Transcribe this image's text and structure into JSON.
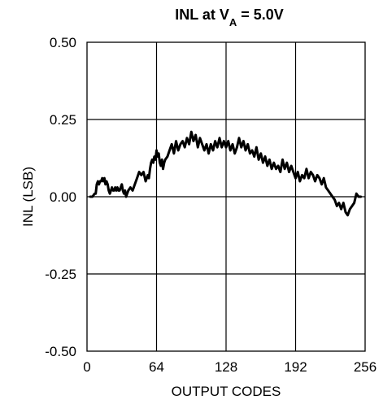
{
  "chart_data": {
    "type": "line",
    "title_main": "INL at V",
    "title_sub": "A",
    "title_rest": " = 5.0V",
    "xlabel": "OUTPUT CODES",
    "ylabel": "INL (LSB)",
    "xlim": [
      0,
      256
    ],
    "ylim": [
      -0.5,
      0.5
    ],
    "xticks": [
      0,
      64,
      128,
      192,
      256
    ],
    "xtick_labels": [
      "0",
      "64",
      "128",
      "192",
      "256"
    ],
    "yticks": [
      0.5,
      0.25,
      0.0,
      -0.25,
      -0.5
    ],
    "ytick_labels": [
      "0.50",
      "0.25",
      "0.00",
      "-0.25",
      "-0.50"
    ],
    "grid": true,
    "line_color": "#000000",
    "series": [
      {
        "x": [
          3,
          5,
          7,
          8,
          9,
          10,
          11,
          12,
          13,
          14,
          15,
          16,
          17,
          18,
          19,
          20,
          21,
          22,
          23,
          24,
          25,
          26,
          27,
          28,
          29,
          30,
          31,
          32,
          33,
          34,
          35,
          36,
          37,
          38,
          40,
          42,
          44,
          46,
          48,
          50,
          52,
          54,
          56,
          57,
          58,
          59,
          60,
          61,
          62,
          63,
          64,
          65,
          66,
          67,
          68,
          69,
          70,
          71,
          72,
          74,
          76,
          78,
          80,
          82,
          84,
          86,
          88,
          90,
          92,
          94,
          96,
          98,
          100,
          102,
          104,
          106,
          108,
          110,
          112,
          114,
          116,
          118,
          120,
          122,
          124,
          126,
          128,
          130,
          132,
          134,
          136,
          138,
          140,
          142,
          144,
          146,
          148,
          150,
          152,
          154,
          156,
          158,
          160,
          162,
          164,
          166,
          168,
          170,
          172,
          174,
          176,
          178,
          180,
          182,
          184,
          186,
          188,
          190,
          192,
          194,
          196,
          198,
          200,
          202,
          204,
          206,
          208,
          210,
          212,
          214,
          216,
          218,
          220,
          222,
          224,
          226,
          228,
          230,
          232,
          234,
          236,
          238,
          240,
          242,
          244,
          246,
          248,
          250,
          252
        ],
        "y": [
          0.0,
          0.0,
          0.01,
          0.01,
          0.04,
          0.05,
          0.04,
          0.05,
          0.05,
          0.06,
          0.05,
          0.06,
          0.04,
          0.05,
          0.04,
          0.02,
          0.01,
          0.02,
          0.03,
          0.02,
          0.02,
          0.03,
          0.02,
          0.03,
          0.02,
          0.02,
          0.03,
          0.04,
          0.02,
          0.01,
          0.02,
          0.0,
          0.01,
          0.02,
          0.03,
          0.02,
          0.04,
          0.06,
          0.08,
          0.07,
          0.08,
          0.05,
          0.07,
          0.06,
          0.09,
          0.11,
          0.12,
          0.11,
          0.13,
          0.12,
          0.15,
          0.13,
          0.14,
          0.11,
          0.1,
          0.12,
          0.09,
          0.11,
          0.12,
          0.13,
          0.15,
          0.17,
          0.14,
          0.18,
          0.15,
          0.17,
          0.18,
          0.16,
          0.19,
          0.17,
          0.21,
          0.18,
          0.2,
          0.16,
          0.19,
          0.17,
          0.15,
          0.17,
          0.14,
          0.17,
          0.15,
          0.18,
          0.16,
          0.19,
          0.16,
          0.18,
          0.16,
          0.18,
          0.15,
          0.17,
          0.14,
          0.16,
          0.19,
          0.16,
          0.18,
          0.15,
          0.17,
          0.14,
          0.15,
          0.13,
          0.16,
          0.12,
          0.14,
          0.11,
          0.13,
          0.1,
          0.12,
          0.09,
          0.11,
          0.09,
          0.1,
          0.08,
          0.12,
          0.09,
          0.11,
          0.08,
          0.1,
          0.08,
          0.06,
          0.08,
          0.05,
          0.07,
          0.06,
          0.09,
          0.06,
          0.08,
          0.07,
          0.05,
          0.07,
          0.06,
          0.04,
          0.06,
          0.03,
          0.02,
          0.01,
          0.0,
          -0.01,
          -0.03,
          -0.02,
          -0.04,
          -0.02,
          -0.05,
          -0.06,
          -0.04,
          -0.03,
          -0.02,
          0.01,
          0.0,
          0.0
        ]
      }
    ]
  }
}
